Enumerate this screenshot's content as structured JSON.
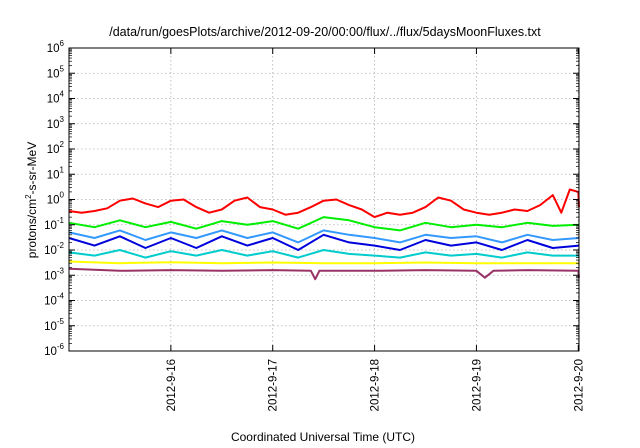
{
  "chart_data": {
    "type": "line",
    "title": "/data/run/goesPlots/archive/2012-09-20/00:00/flux/../flux/5daysMoonFluxes.txt",
    "xlabel": "Coordinated Universal Time (UTC)",
    "ylabel": {
      "prefix": "protons/cm",
      "sup": "2",
      "suffix": "-s-sr-MeV"
    },
    "yscale": "log",
    "ylim": [
      1e-06,
      1000000.0
    ],
    "yticks": [
      {
        "value": 1e-06,
        "base": "10",
        "exp": "-6"
      },
      {
        "value": 1e-05,
        "base": "10",
        "exp": "-5"
      },
      {
        "value": 0.0001,
        "base": "10",
        "exp": "-4"
      },
      {
        "value": 0.001,
        "base": "10",
        "exp": "-3"
      },
      {
        "value": 0.01,
        "base": "10",
        "exp": "-2"
      },
      {
        "value": 0.1,
        "base": "10",
        "exp": "-1"
      },
      {
        "value": 1,
        "base": "10",
        "exp": "0"
      },
      {
        "value": 10,
        "base": "10",
        "exp": "1"
      },
      {
        "value": 100,
        "base": "10",
        "exp": "2"
      },
      {
        "value": 1000,
        "base": "10",
        "exp": "3"
      },
      {
        "value": 10000,
        "base": "10",
        "exp": "4"
      },
      {
        "value": 100000,
        "base": "10",
        "exp": "5"
      },
      {
        "value": 1000000,
        "base": "10",
        "exp": "6"
      }
    ],
    "xlim": [
      "2012-09-15T00:00",
      "2012-09-20T00:10"
    ],
    "xticks": [
      {
        "value": "2012-09-16T00:00",
        "label": "2012-9-16"
      },
      {
        "value": "2012-09-17T00:00",
        "label": "2012-9-17"
      },
      {
        "value": "2012-09-18T00:00",
        "label": "2012-9-18"
      },
      {
        "value": "2012-09-19T00:00",
        "label": "2012-9-19"
      },
      {
        "value": "2012-09-20T00:00",
        "label": "2012-9-20"
      }
    ],
    "grid": true,
    "legend": "none",
    "series": [
      {
        "color": "#ff0000",
        "points": [
          [
            "2012-09-15T00:00",
            0.35
          ],
          [
            "2012-09-15T03:00",
            0.3
          ],
          [
            "2012-09-15T06:00",
            0.35
          ],
          [
            "2012-09-15T09:00",
            0.45
          ],
          [
            "2012-09-15T12:00",
            0.9
          ],
          [
            "2012-09-15T15:00",
            1.1
          ],
          [
            "2012-09-15T18:00",
            0.7
          ],
          [
            "2012-09-15T21:00",
            0.5
          ],
          [
            "2012-09-16T00:00",
            0.9
          ],
          [
            "2012-09-16T03:00",
            1.0
          ],
          [
            "2012-09-16T06:00",
            0.5
          ],
          [
            "2012-09-16T09:00",
            0.3
          ],
          [
            "2012-09-16T12:00",
            0.4
          ],
          [
            "2012-09-16T15:00",
            0.9
          ],
          [
            "2012-09-16T18:00",
            1.2
          ],
          [
            "2012-09-16T21:00",
            0.5
          ],
          [
            "2012-09-17T00:00",
            0.4
          ],
          [
            "2012-09-17T03:00",
            0.25
          ],
          [
            "2012-09-17T06:00",
            0.3
          ],
          [
            "2012-09-17T09:00",
            0.5
          ],
          [
            "2012-09-17T12:00",
            0.9
          ],
          [
            "2012-09-17T15:00",
            1.0
          ],
          [
            "2012-09-17T18:00",
            0.6
          ],
          [
            "2012-09-17T21:00",
            0.4
          ],
          [
            "2012-09-18T00:00",
            0.2
          ],
          [
            "2012-09-18T03:00",
            0.3
          ],
          [
            "2012-09-18T06:00",
            0.25
          ],
          [
            "2012-09-18T09:00",
            0.3
          ],
          [
            "2012-09-18T12:00",
            0.5
          ],
          [
            "2012-09-18T15:00",
            1.2
          ],
          [
            "2012-09-18T18:00",
            0.9
          ],
          [
            "2012-09-18T21:00",
            0.4
          ],
          [
            "2012-09-19T00:00",
            0.3
          ],
          [
            "2012-09-19T03:00",
            0.25
          ],
          [
            "2012-09-19T06:00",
            0.3
          ],
          [
            "2012-09-19T09:00",
            0.4
          ],
          [
            "2012-09-19T12:00",
            0.35
          ],
          [
            "2012-09-19T15:00",
            0.6
          ],
          [
            "2012-09-19T18:00",
            1.5
          ],
          [
            "2012-09-19T20:00",
            0.3
          ],
          [
            "2012-09-19T22:00",
            2.5
          ],
          [
            "2012-09-20T00:00",
            2.0
          ],
          [
            "2012-09-20T00:10",
            0.5
          ]
        ]
      },
      {
        "color": "#00ee00",
        "points": [
          [
            "2012-09-15T00:00",
            0.12
          ],
          [
            "2012-09-15T06:00",
            0.08
          ],
          [
            "2012-09-15T12:00",
            0.15
          ],
          [
            "2012-09-15T18:00",
            0.08
          ],
          [
            "2012-09-16T00:00",
            0.13
          ],
          [
            "2012-09-16T06:00",
            0.07
          ],
          [
            "2012-09-16T12:00",
            0.14
          ],
          [
            "2012-09-16T18:00",
            0.1
          ],
          [
            "2012-09-17T00:00",
            0.14
          ],
          [
            "2012-09-17T06:00",
            0.07
          ],
          [
            "2012-09-17T12:00",
            0.2
          ],
          [
            "2012-09-17T18:00",
            0.15
          ],
          [
            "2012-09-18T00:00",
            0.08
          ],
          [
            "2012-09-18T06:00",
            0.06
          ],
          [
            "2012-09-18T12:00",
            0.12
          ],
          [
            "2012-09-18T18:00",
            0.08
          ],
          [
            "2012-09-19T00:00",
            0.1
          ],
          [
            "2012-09-19T06:00",
            0.08
          ],
          [
            "2012-09-19T12:00",
            0.12
          ],
          [
            "2012-09-19T18:00",
            0.09
          ],
          [
            "2012-09-20T00:10",
            0.1
          ]
        ]
      },
      {
        "color": "#3399ff",
        "points": [
          [
            "2012-09-15T00:00",
            0.05
          ],
          [
            "2012-09-15T06:00",
            0.03
          ],
          [
            "2012-09-15T12:00",
            0.06
          ],
          [
            "2012-09-15T18:00",
            0.025
          ],
          [
            "2012-09-16T00:00",
            0.05
          ],
          [
            "2012-09-16T06:00",
            0.03
          ],
          [
            "2012-09-16T12:00",
            0.06
          ],
          [
            "2012-09-16T18:00",
            0.03
          ],
          [
            "2012-09-17T00:00",
            0.05
          ],
          [
            "2012-09-17T06:00",
            0.02
          ],
          [
            "2012-09-17T12:00",
            0.06
          ],
          [
            "2012-09-17T18:00",
            0.04
          ],
          [
            "2012-09-18T00:00",
            0.03
          ],
          [
            "2012-09-18T06:00",
            0.02
          ],
          [
            "2012-09-18T12:00",
            0.04
          ],
          [
            "2012-09-18T18:00",
            0.03
          ],
          [
            "2012-09-19T00:00",
            0.035
          ],
          [
            "2012-09-19T06:00",
            0.02
          ],
          [
            "2012-09-19T12:00",
            0.04
          ],
          [
            "2012-09-19T18:00",
            0.025
          ],
          [
            "2012-09-20T00:10",
            0.03
          ]
        ]
      },
      {
        "color": "#0000dd",
        "points": [
          [
            "2012-09-15T00:00",
            0.03
          ],
          [
            "2012-09-15T06:00",
            0.015
          ],
          [
            "2012-09-15T12:00",
            0.035
          ],
          [
            "2012-09-15T18:00",
            0.012
          ],
          [
            "2012-09-16T00:00",
            0.03
          ],
          [
            "2012-09-16T06:00",
            0.012
          ],
          [
            "2012-09-16T12:00",
            0.035
          ],
          [
            "2012-09-16T18:00",
            0.015
          ],
          [
            "2012-09-17T00:00",
            0.03
          ],
          [
            "2012-09-17T06:00",
            0.01
          ],
          [
            "2012-09-17T12:00",
            0.04
          ],
          [
            "2012-09-17T18:00",
            0.02
          ],
          [
            "2012-09-18T00:00",
            0.015
          ],
          [
            "2012-09-18T06:00",
            0.01
          ],
          [
            "2012-09-18T12:00",
            0.025
          ],
          [
            "2012-09-18T18:00",
            0.015
          ],
          [
            "2012-09-19T00:00",
            0.02
          ],
          [
            "2012-09-19T06:00",
            0.01
          ],
          [
            "2012-09-19T12:00",
            0.025
          ],
          [
            "2012-09-19T18:00",
            0.012
          ],
          [
            "2012-09-20T00:10",
            0.015
          ]
        ]
      },
      {
        "color": "#00cccc",
        "points": [
          [
            "2012-09-15T00:00",
            0.008
          ],
          [
            "2012-09-15T06:00",
            0.006
          ],
          [
            "2012-09-15T12:00",
            0.01
          ],
          [
            "2012-09-15T18:00",
            0.005
          ],
          [
            "2012-09-16T00:00",
            0.009
          ],
          [
            "2012-09-16T06:00",
            0.006
          ],
          [
            "2012-09-16T12:00",
            0.01
          ],
          [
            "2012-09-16T18:00",
            0.006
          ],
          [
            "2012-09-17T00:00",
            0.009
          ],
          [
            "2012-09-17T06:00",
            0.005
          ],
          [
            "2012-09-17T12:00",
            0.01
          ],
          [
            "2012-09-17T18:00",
            0.007
          ],
          [
            "2012-09-18T00:00",
            0.006
          ],
          [
            "2012-09-18T06:00",
            0.005
          ],
          [
            "2012-09-18T12:00",
            0.008
          ],
          [
            "2012-09-18T18:00",
            0.006
          ],
          [
            "2012-09-19T00:00",
            0.007
          ],
          [
            "2012-09-19T06:00",
            0.005
          ],
          [
            "2012-09-19T12:00",
            0.008
          ],
          [
            "2012-09-19T18:00",
            0.006
          ],
          [
            "2012-09-20T00:10",
            0.006
          ]
        ]
      },
      {
        "color": "#ffff00",
        "points": [
          [
            "2012-09-15T00:00",
            0.0035
          ],
          [
            "2012-09-15T12:00",
            0.003
          ],
          [
            "2012-09-16T00:00",
            0.0033
          ],
          [
            "2012-09-16T12:00",
            0.003
          ],
          [
            "2012-09-17T00:00",
            0.0032
          ],
          [
            "2012-09-17T12:00",
            0.003
          ],
          [
            "2012-09-18T00:00",
            0.003
          ],
          [
            "2012-09-18T12:00",
            0.0032
          ],
          [
            "2012-09-19T00:00",
            0.003
          ],
          [
            "2012-09-19T12:00",
            0.003
          ],
          [
            "2012-09-20T00:10",
            0.003
          ]
        ]
      },
      {
        "color": "#993366",
        "points": [
          [
            "2012-09-15T00:00",
            0.0018
          ],
          [
            "2012-09-15T12:00",
            0.0015
          ],
          [
            "2012-09-16T00:00",
            0.0016
          ],
          [
            "2012-09-16T12:00",
            0.0015
          ],
          [
            "2012-09-17T00:00",
            0.0016
          ],
          [
            "2012-09-17T09:00",
            0.0015
          ],
          [
            "2012-09-17T10:00",
            0.0007
          ],
          [
            "2012-09-17T11:00",
            0.0015
          ],
          [
            "2012-09-18T00:00",
            0.0015
          ],
          [
            "2012-09-18T12:00",
            0.0016
          ],
          [
            "2012-09-19T00:00",
            0.0015
          ],
          [
            "2012-09-19T02:00",
            0.0008
          ],
          [
            "2012-09-19T04:00",
            0.0015
          ],
          [
            "2012-09-19T12:00",
            0.0016
          ],
          [
            "2012-09-20T00:00",
            0.0015
          ],
          [
            "2012-09-20T00:10",
            0.0008
          ]
        ]
      }
    ]
  }
}
